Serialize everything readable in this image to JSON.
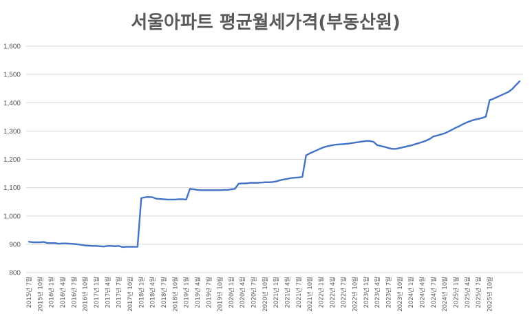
{
  "chart_data": {
    "type": "line",
    "title": "서울아파트 평균월세가격(부동산원)",
    "xlabel": "",
    "ylabel": "",
    "ylim": [
      800,
      1600
    ],
    "yticks": [
      800,
      900,
      1000,
      1100,
      1200,
      1300,
      1400,
      1500,
      1600
    ],
    "ytick_labels": [
      "800",
      "900",
      "1,000",
      "1,100",
      "1,200",
      "1,300",
      "1,400",
      "1,500",
      "1,600"
    ],
    "grid": true,
    "legend": "none",
    "line_color": "#4472c4",
    "x_tick_labels": [
      "2015년 7월",
      "2015년 10월",
      "2016년 1월",
      "2016년 4월",
      "2016년 7월",
      "2016년 10월",
      "2017년 1월",
      "2017년 4월",
      "2017년 7월",
      "2017년 10월",
      "2018년 1월",
      "2018년 4월",
      "2018년 7월",
      "2018년 10월",
      "2019년 1월",
      "2019년 4월",
      "2019년 7월",
      "2019년 10월",
      "2020년 1월",
      "2020년 4월",
      "2020년 7월",
      "2020년 10월",
      "2021년 1월",
      "2021년 4월",
      "2021년 7월",
      "2021년 10월",
      "2022년 1월",
      "2022년 4월",
      "2022년 7월",
      "2022년 10월",
      "2023년 1월",
      "2023년 4월",
      "2023년 7월",
      "2023년 10월",
      "2024년 1월",
      "2024년 4월",
      "2024년 7월",
      "2024년 10월",
      "2025년 1월",
      "2025년 4월",
      "2025년 7월",
      "2025년 10월"
    ],
    "series": [
      {
        "values": [
          909,
          907,
          907,
          907,
          908,
          904,
          904,
          904,
          902,
          903,
          903,
          902,
          901,
          900,
          898,
          896,
          895,
          894,
          894,
          893,
          892,
          894,
          894,
          893,
          894,
          890,
          891,
          891,
          891,
          891,
          1063,
          1066,
          1067,
          1066,
          1061,
          1060,
          1059,
          1058,
          1058,
          1058,
          1059,
          1059,
          1058,
          1096,
          1094,
          1092,
          1091,
          1091,
          1091,
          1091,
          1091,
          1091,
          1092,
          1092,
          1094,
          1096,
          1114,
          1115,
          1115,
          1117,
          1117,
          1117,
          1118,
          1119,
          1119,
          1120,
          1122,
          1126,
          1129,
          1131,
          1134,
          1135,
          1136,
          1138,
          1214,
          1221,
          1227,
          1233,
          1239,
          1244,
          1247,
          1250,
          1252,
          1253,
          1254,
          1255,
          1257,
          1259,
          1261,
          1263,
          1265,
          1265,
          1262,
          1250,
          1247,
          1244,
          1240,
          1237,
          1237,
          1240,
          1243,
          1246,
          1249,
          1253,
          1257,
          1261,
          1266,
          1272,
          1281,
          1284,
          1288,
          1292,
          1298,
          1305,
          1312,
          1318,
          1325,
          1331,
          1336,
          1340,
          1343,
          1346,
          1351,
          1409,
          1414,
          1420,
          1426,
          1432,
          1438,
          1448,
          1462,
          1476
        ]
      }
    ]
  }
}
